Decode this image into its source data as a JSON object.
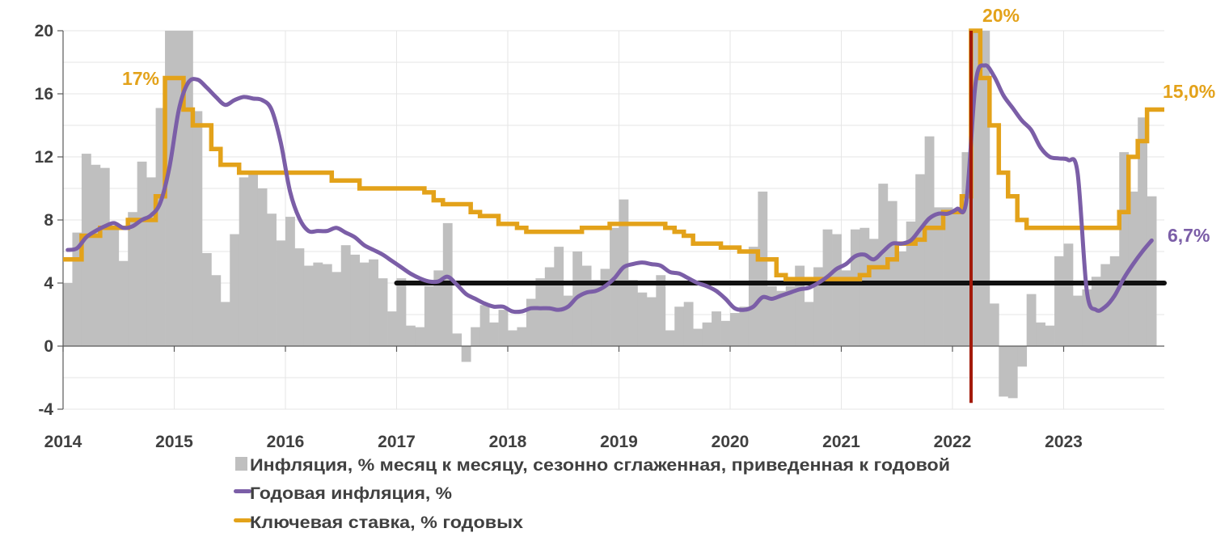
{
  "chart_data": {
    "type": "bar+line",
    "title": "",
    "xlabel": "",
    "ylabel": "",
    "ylim": [
      -4,
      20
    ],
    "yticks": [
      -4,
      0,
      4,
      8,
      12,
      16,
      20
    ],
    "xticks": [
      "2014",
      "2015",
      "2016",
      "2017",
      "2018",
      "2019",
      "2020",
      "2021",
      "2022",
      "2023"
    ],
    "xrange": [
      "2014-01",
      "2023-11"
    ],
    "grid": true,
    "legend_position": "bottom",
    "x_start": "2014-01",
    "x_frequency": "monthly",
    "series": [
      {
        "name": "Инфляция, % месяц к месяцу, сезонно сглаженная, приведенная к годовой",
        "kind": "bar",
        "color": "#bfbfbf",
        "values": [
          4.0,
          7.2,
          12.2,
          11.5,
          11.3,
          7.4,
          5.4,
          8.5,
          11.7,
          10.7,
          15.1,
          20,
          20,
          20,
          14.9,
          5.9,
          4.5,
          2.8,
          7.1,
          10.7,
          11.0,
          10.0,
          8.4,
          6.7,
          8.2,
          6.2,
          5.1,
          5.3,
          5.2,
          4.7,
          6.4,
          5.8,
          5.3,
          5.5,
          4.3,
          2.2,
          4.3,
          1.3,
          1.2,
          3.8,
          4.8,
          7.8,
          0.8,
          -1.0,
          1.2,
          2.6,
          1.5,
          2.3,
          1.0,
          1.2,
          3.0,
          4.3,
          5.0,
          6.3,
          3.2,
          6.0,
          5.1,
          4.2,
          4.9,
          7.5,
          9.3,
          4.2,
          3.4,
          3.1,
          4.5,
          1.0,
          2.5,
          2.8,
          1.1,
          1.5,
          2.2,
          1.6,
          2.1,
          2.5,
          6.3,
          9.8,
          3.8,
          3.5,
          3.8,
          5.1,
          2.8,
          5.0,
          7.4,
          7.1,
          4.8,
          7.4,
          7.5,
          6.8,
          10.3,
          9.2,
          6.0,
          7.9,
          10.9,
          13.3,
          8.8,
          8.8,
          8.7,
          12.3,
          20,
          20,
          2.7,
          -3.2,
          -3.3,
          -1.3,
          3.3,
          1.5,
          1.3,
          5.7,
          6.5,
          3.2,
          3.6,
          4.4,
          5.2,
          5.7,
          12.3,
          9.8,
          14.5,
          9.5
        ]
      },
      {
        "name": "Годовая инфляция, %",
        "kind": "line",
        "color": "#7b5ea7",
        "values": [
          6.1,
          6.2,
          6.9,
          7.3,
          7.6,
          7.8,
          7.5,
          7.6,
          8.0,
          8.3,
          9.1,
          11.4,
          15.0,
          16.7,
          16.9,
          16.4,
          15.8,
          15.3,
          15.6,
          15.8,
          15.7,
          15.6,
          15.0,
          12.9,
          9.8,
          8.1,
          7.3,
          7.3,
          7.3,
          7.5,
          7.2,
          6.9,
          6.4,
          6.1,
          5.8,
          5.4,
          5.0,
          4.6,
          4.3,
          4.1,
          4.1,
          4.4,
          3.9,
          3.3,
          3.0,
          2.7,
          2.5,
          2.5,
          2.2,
          2.2,
          2.4,
          2.4,
          2.4,
          2.3,
          2.5,
          3.1,
          3.4,
          3.5,
          3.8,
          4.3,
          5.0,
          5.2,
          5.3,
          5.2,
          5.1,
          4.7,
          4.6,
          4.3,
          4.0,
          3.8,
          3.5,
          3.0,
          2.4,
          2.3,
          2.5,
          3.1,
          3.0,
          3.2,
          3.4,
          3.6,
          3.7,
          4.0,
          4.4,
          4.9,
          5.2,
          5.7,
          5.8,
          5.5,
          6.0,
          6.5,
          6.5,
          6.7,
          7.4,
          8.1,
          8.4,
          8.4,
          8.7,
          9.2,
          16.7,
          17.8,
          17.1,
          15.9,
          15.1,
          14.3,
          13.7,
          12.6,
          12.0,
          11.9,
          11.8,
          11.0,
          3.5,
          2.3,
          2.5,
          3.2,
          4.3,
          5.2,
          6.0,
          6.7
        ]
      },
      {
        "name": "Ключевая ставка, % годовых",
        "kind": "step",
        "color": "#e3a21a",
        "values": [
          5.5,
          5.5,
          7,
          7,
          7.5,
          7.5,
          7.5,
          8,
          8,
          8,
          9.5,
          17,
          17,
          15,
          14,
          14,
          12.5,
          11.5,
          11.5,
          11,
          11,
          11,
          11,
          11,
          11,
          11,
          11,
          11,
          11,
          10.5,
          10.5,
          10.5,
          10,
          10,
          10,
          10,
          10,
          10,
          10,
          9.75,
          9.25,
          9,
          9,
          9,
          8.5,
          8.25,
          8.25,
          7.75,
          7.75,
          7.5,
          7.25,
          7.25,
          7.25,
          7.25,
          7.25,
          7.25,
          7.5,
          7.5,
          7.5,
          7.75,
          7.75,
          7.75,
          7.75,
          7.75,
          7.75,
          7.5,
          7.25,
          7,
          6.5,
          6.5,
          6.5,
          6.25,
          6.25,
          6,
          6,
          5.5,
          5.5,
          4.5,
          4.25,
          4.25,
          4.25,
          4.25,
          4.25,
          4.25,
          4.25,
          4.25,
          4.5,
          5,
          5,
          5.5,
          6.5,
          6.5,
          6.75,
          7.5,
          7.5,
          8.5,
          8.5,
          9.5,
          20,
          17,
          14,
          11,
          9.5,
          8,
          7.5,
          7.5,
          7.5,
          7.5,
          7.5,
          7.5,
          7.5,
          7.5,
          7.5,
          7.5,
          8.5,
          12,
          13,
          15,
          15
        ]
      }
    ],
    "reference_lines": [
      {
        "kind": "horizontal",
        "value": 4,
        "from": "2017-01",
        "color": "#111111"
      },
      {
        "kind": "vertical",
        "at": "2022-03",
        "color": "#a31a0a"
      }
    ],
    "annotations": [
      {
        "text": "17%",
        "series": "Ключевая ставка, % годовых",
        "at": "2014-12",
        "color": "#e3a21a"
      },
      {
        "text": "20%",
        "series": "Ключевая ставка, % годовых",
        "at": "2022-03",
        "color": "#e3a21a"
      },
      {
        "text": "15,0%",
        "series": "Ключевая ставка, % годовых",
        "at": "2023-11",
        "color": "#e3a21a"
      },
      {
        "text": "6,7%",
        "series": "Годовая инфляция, %",
        "at": "2023-10",
        "color": "#7b5ea7"
      }
    ]
  }
}
